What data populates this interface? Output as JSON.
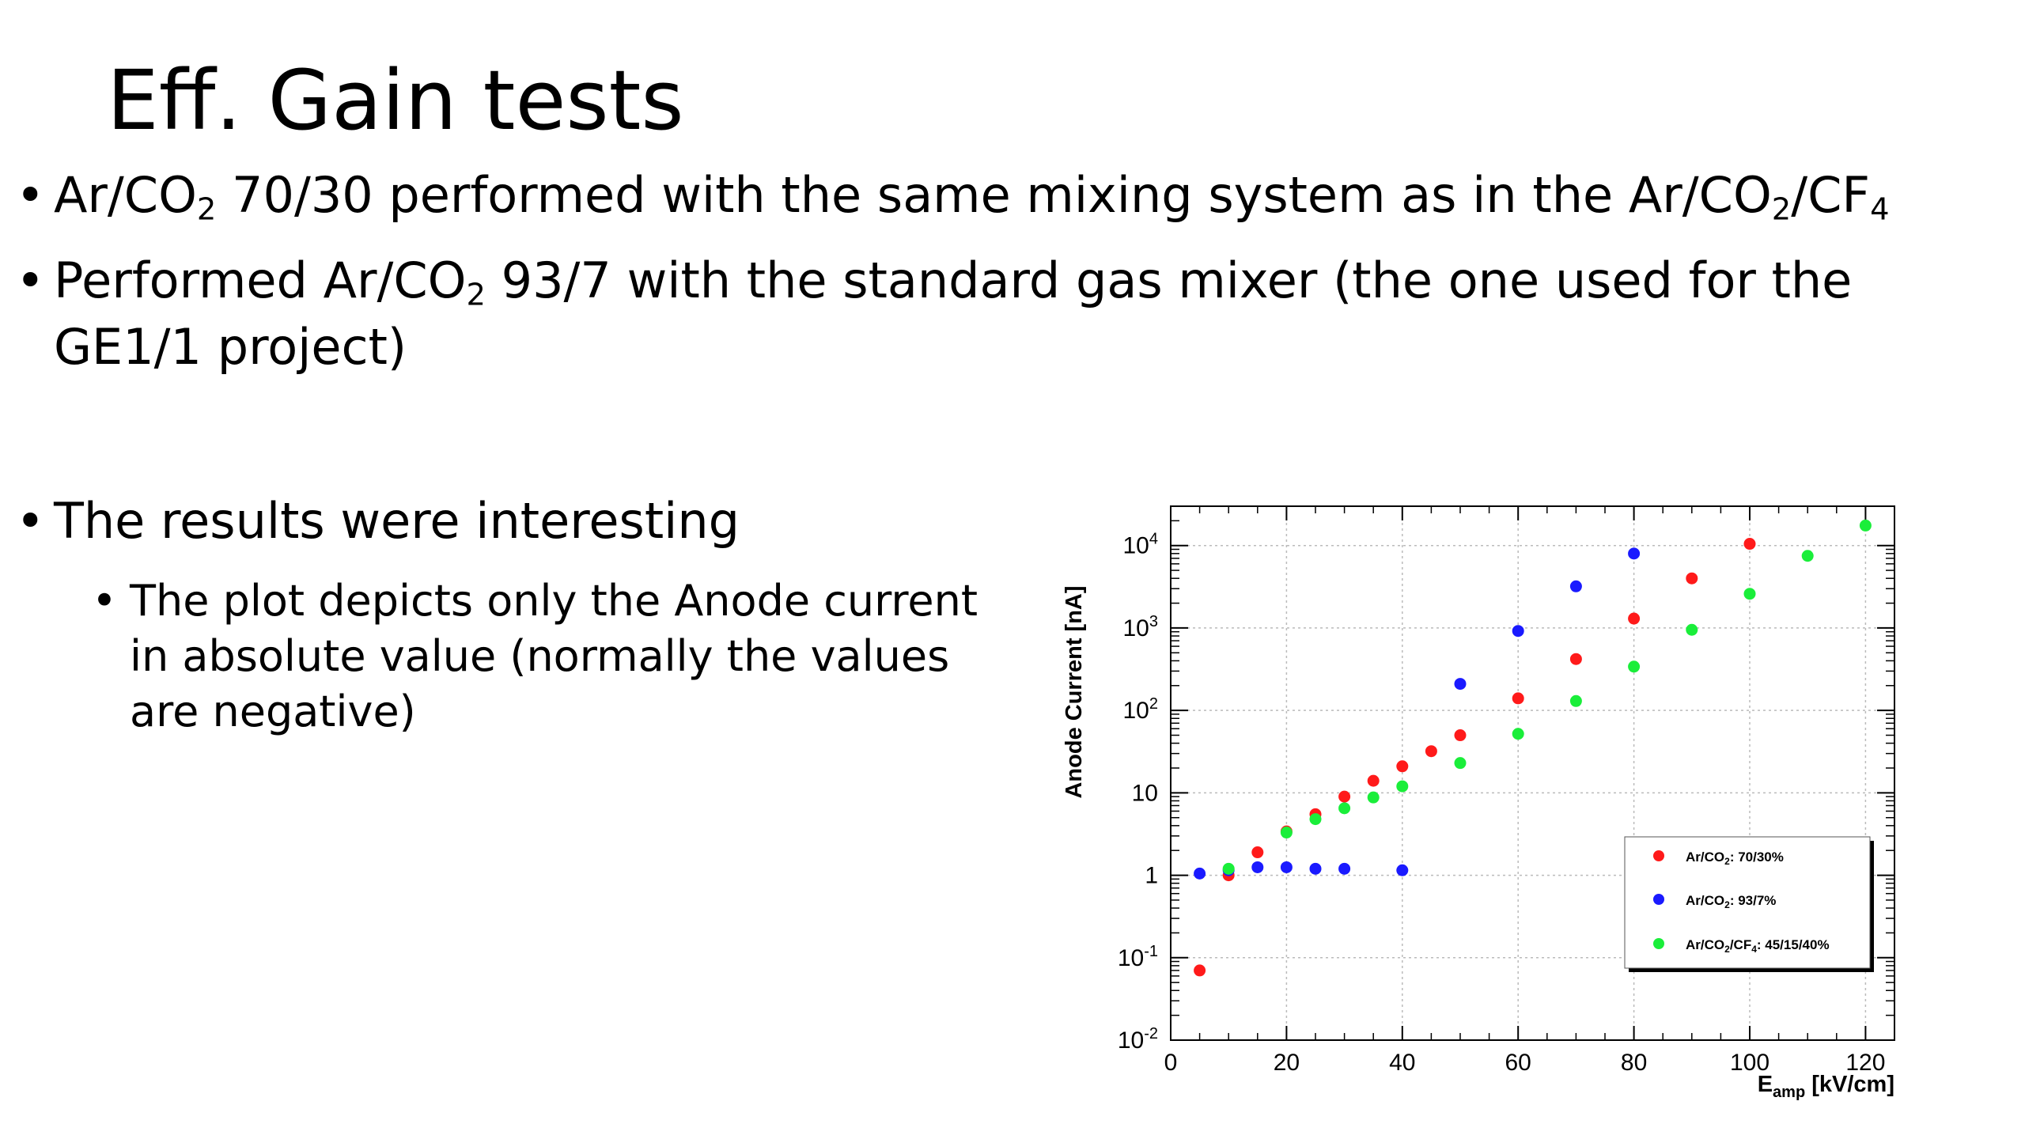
{
  "slide": {
    "title": "Eff. Gain tests",
    "bullet1": {
      "a": "Ar/CO",
      "b": "2",
      "c": " 70/30 performed with the same mixing system as in the Ar/CO",
      "d": "2",
      "e": "/CF",
      "f": "4"
    },
    "bullet2": {
      "a": "Performed Ar/CO",
      "b": "2",
      "c": " 93/7 with the standard gas mixer (the one used for the GE1/1 project)"
    },
    "bullet3": "The results were interesting",
    "subbullet": "The plot depicts only the Anode current in absolute value (normally the values are negative)"
  },
  "chart_data": {
    "type": "scatter",
    "title": "",
    "xlabel": "E_amp [kV/cm]",
    "ylabel": "Anode Current [nA]",
    "xlim": [
      0,
      125
    ],
    "ylim": [
      0.01,
      30000
    ],
    "yscale": "log",
    "grid": true,
    "legend_position": "right",
    "x_ticks": [
      "0",
      "20",
      "40",
      "60",
      "80",
      "100",
      "120"
    ],
    "y_ticks": [
      "10^-2",
      "10^-1",
      "1",
      "10",
      "10^2",
      "10^3",
      "10^4"
    ],
    "series": [
      {
        "name": "Ar/CO2: 70/30%",
        "color": "#ff1a1a",
        "points": [
          [
            5,
            0.07
          ],
          [
            10,
            1.0
          ],
          [
            15,
            1.9
          ],
          [
            20,
            3.4
          ],
          [
            25,
            5.5
          ],
          [
            30,
            9
          ],
          [
            35,
            14
          ],
          [
            40,
            21
          ],
          [
            45,
            32
          ],
          [
            50,
            50
          ],
          [
            60,
            140
          ],
          [
            70,
            420
          ],
          [
            80,
            1300
          ],
          [
            90,
            4000
          ],
          [
            100,
            10500
          ]
        ]
      },
      {
        "name": "Ar/CO2: 93/7%",
        "color": "#1a1aff",
        "points": [
          [
            5,
            1.05
          ],
          [
            10,
            1.15
          ],
          [
            15,
            1.25
          ],
          [
            20,
            1.25
          ],
          [
            25,
            1.2
          ],
          [
            30,
            1.2
          ],
          [
            40,
            1.15
          ],
          [
            50,
            210
          ],
          [
            60,
            920
          ],
          [
            70,
            3200
          ],
          [
            80,
            8000
          ]
        ]
      },
      {
        "name": "Ar/CO2/CF4: 45/15/40%",
        "color": "#1aee3a",
        "points": [
          [
            10,
            1.2
          ],
          [
            20,
            3.3
          ],
          [
            25,
            4.8
          ],
          [
            30,
            6.5
          ],
          [
            35,
            8.8
          ],
          [
            40,
            12
          ],
          [
            50,
            23
          ],
          [
            60,
            52
          ],
          [
            70,
            130
          ],
          [
            80,
            340
          ],
          [
            90,
            950
          ],
          [
            100,
            2600
          ],
          [
            110,
            7500
          ],
          [
            120,
            17500
          ]
        ]
      }
    ]
  },
  "legend": [
    {
      "pre": "Ar/CO",
      "s1": "2",
      "post": ": 70/30%",
      "color": "#ff1a1a"
    },
    {
      "pre": "Ar/CO",
      "s1": "2",
      "post": ": 93/7%",
      "color": "#1a1aff"
    },
    {
      "pre": "Ar/CO",
      "s1": "2",
      "mid": "/CF",
      "s2": "4",
      "post": ": 45/15/40%",
      "color": "#1aee3a"
    }
  ],
  "axis_text": {
    "ylabel": "Anode Current [nA]",
    "xlabel_main": "E",
    "xlabel_sub": "amp",
    "xlabel_unit": " [kV/cm]"
  }
}
